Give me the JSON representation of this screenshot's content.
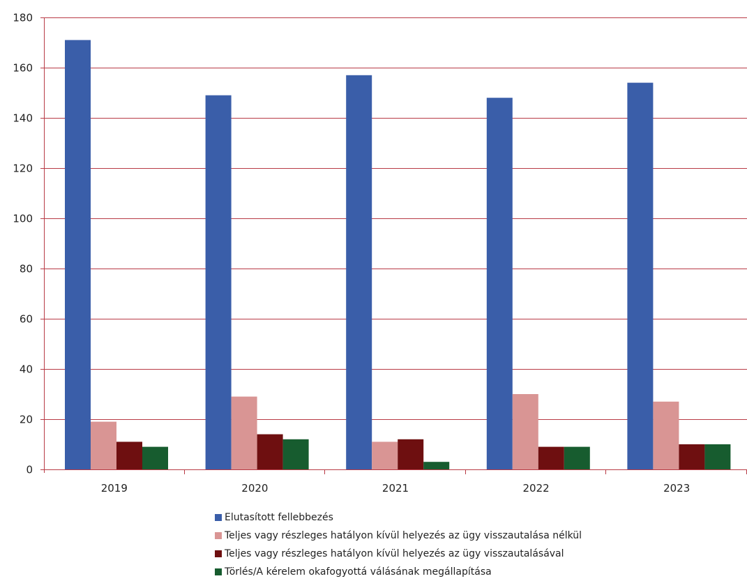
{
  "chart_data": {
    "type": "bar",
    "title": "",
    "xlabel": "",
    "ylabel": "",
    "categories": [
      "2019",
      "2020",
      "2021",
      "2022",
      "2023"
    ],
    "ylim": [
      0,
      180
    ],
    "yticks": [
      0,
      20,
      40,
      60,
      80,
      100,
      120,
      140,
      160,
      180
    ],
    "grid": true,
    "legend_position": "bottom",
    "series": [
      {
        "name": "Elutasított fellebbezés",
        "color": "#3a5ea9",
        "values": [
          171,
          149,
          157,
          148,
          154
        ]
      },
      {
        "name": "Teljes vagy részleges hatályon kívül helyezés az ügy visszautalása nélkül",
        "color": "#d99594",
        "values": [
          19,
          29,
          11,
          30,
          27
        ]
      },
      {
        "name": "Teljes vagy részleges hatályon kívül helyezés az ügy visszautalásával",
        "color": "#6e0f10",
        "values": [
          11,
          14,
          12,
          9,
          10
        ]
      },
      {
        "name": "Törlés/A kérelem okafogyottá válásának megállapítása",
        "color": "#175c2f",
        "values": [
          9,
          12,
          3,
          9,
          10
        ]
      }
    ],
    "gridline_color": "#b83a45"
  }
}
